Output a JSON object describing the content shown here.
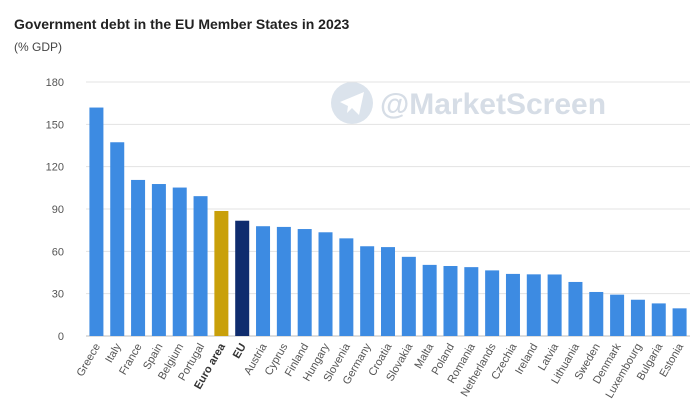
{
  "chart_data": {
    "type": "bar",
    "title": "Government debt in the EU Member States in 2023",
    "subtitle": "(% GDP)",
    "xlabel": "",
    "ylabel": "",
    "ylim": [
      0,
      180
    ],
    "yticks": [
      0,
      30,
      60,
      90,
      120,
      150,
      180
    ],
    "grid": true,
    "categories": [
      "Greece",
      "Italy",
      "France",
      "Spain",
      "Belgium",
      "Portugal",
      "Euro area",
      "EU",
      "Austria",
      "Cyprus",
      "Finland",
      "Hungary",
      "Slovenia",
      "Germany",
      "Croatia",
      "Slovakia",
      "Malta",
      "Poland",
      "Romania",
      "Netherlands",
      "Czechia",
      "Ireland",
      "Latvia",
      "Lithuania",
      "Sweden",
      "Denmark",
      "Luxembourg",
      "Bulgaria",
      "Estonia"
    ],
    "values": [
      161.9,
      137.3,
      110.6,
      107.7,
      105.2,
      99.1,
      88.6,
      81.7,
      77.8,
      77.3,
      75.8,
      73.5,
      69.2,
      63.6,
      63.0,
      56.1,
      50.4,
      49.6,
      48.8,
      46.5,
      44.0,
      43.7,
      43.6,
      38.3,
      31.2,
      29.3,
      25.7,
      23.1,
      19.6
    ],
    "highlight": {
      "Euro area": "bold",
      "EU": "bold"
    },
    "colors": {
      "default": "#3d8be2",
      "Euro area": "#c9a00a",
      "EU": "#0f2c6e",
      "grid": "#e3e3e3"
    }
  },
  "watermark": {
    "icon": "telegram-icon",
    "text": "@MarketScreen"
  }
}
